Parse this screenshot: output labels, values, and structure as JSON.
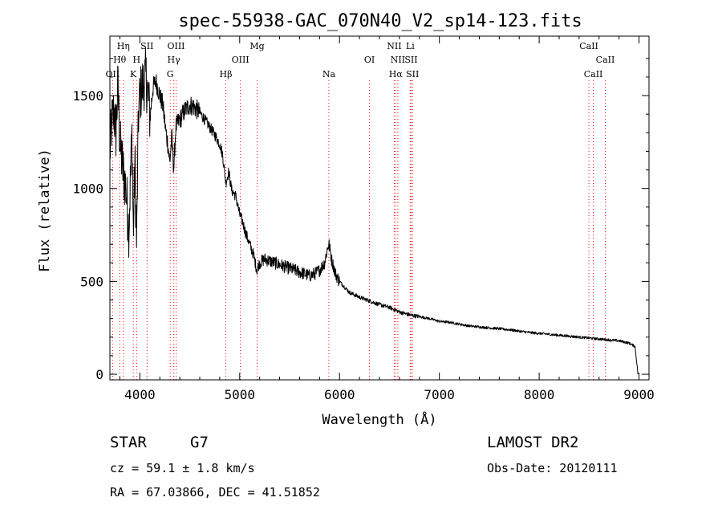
{
  "chart_data": {
    "type": "line",
    "title": "spec-55938-GAC_070N40_V2_sp14-123.fits",
    "xlabel": "Wavelength (Å)",
    "ylabel": "Flux (relative)",
    "xlim": [
      3700,
      9100
    ],
    "ylim": [
      -30,
      1820
    ],
    "xticks": [
      4000,
      5000,
      6000,
      7000,
      8000,
      9000
    ],
    "yticks": [
      0,
      500,
      1000,
      1500
    ],
    "grid": false,
    "line_color": "#000000",
    "marker_color": "#ff0000",
    "spectrum_anchors": [
      [
        3700,
        1200
      ],
      [
        3720,
        1350
      ],
      [
        3740,
        1420
      ],
      [
        3760,
        1300
      ],
      [
        3780,
        1550
      ],
      [
        3800,
        1250
      ],
      [
        3830,
        1100
      ],
      [
        3860,
        1000
      ],
      [
        3890,
        780
      ],
      [
        3920,
        1300
      ],
      [
        3935,
        760
      ],
      [
        3950,
        1150
      ],
      [
        3968,
        690
      ],
      [
        3985,
        1380
      ],
      [
        4000,
        1500
      ],
      [
        4030,
        1560
      ],
      [
        4060,
        1600
      ],
      [
        4080,
        1520
      ],
      [
        4102,
        1380
      ],
      [
        4130,
        1540
      ],
      [
        4160,
        1580
      ],
      [
        4200,
        1500
      ],
      [
        4230,
        1450
      ],
      [
        4260,
        1310
      ],
      [
        4280,
        1240
      ],
      [
        4300,
        1140
      ],
      [
        4320,
        1280
      ],
      [
        4340,
        1100
      ],
      [
        4360,
        1330
      ],
      [
        4400,
        1370
      ],
      [
        4450,
        1420
      ],
      [
        4500,
        1450
      ],
      [
        4540,
        1440
      ],
      [
        4600,
        1410
      ],
      [
        4650,
        1370
      ],
      [
        4700,
        1330
      ],
      [
        4750,
        1290
      ],
      [
        4800,
        1240
      ],
      [
        4830,
        1180
      ],
      [
        4861,
        1030
      ],
      [
        4890,
        1090
      ],
      [
        4920,
        990
      ],
      [
        4960,
        960
      ],
      [
        5000,
        860
      ],
      [
        5030,
        820
      ],
      [
        5060,
        760
      ],
      [
        5100,
        700
      ],
      [
        5140,
        640
      ],
      [
        5172,
        560
      ],
      [
        5200,
        600
      ],
      [
        5250,
        620
      ],
      [
        5300,
        610
      ],
      [
        5400,
        590
      ],
      [
        5500,
        570
      ],
      [
        5600,
        550
      ],
      [
        5700,
        530
      ],
      [
        5750,
        540
      ],
      [
        5800,
        560
      ],
      [
        5850,
        600
      ],
      [
        5880,
        680
      ],
      [
        5895,
        700
      ],
      [
        5920,
        620
      ],
      [
        5960,
        540
      ],
      [
        6000,
        500
      ],
      [
        6050,
        470
      ],
      [
        6100,
        440
      ],
      [
        6200,
        415
      ],
      [
        6300,
        395
      ],
      [
        6400,
        375
      ],
      [
        6500,
        360
      ],
      [
        6563,
        345
      ],
      [
        6600,
        335
      ],
      [
        6700,
        320
      ],
      [
        6800,
        310
      ],
      [
        6900,
        300
      ],
      [
        7000,
        285
      ],
      [
        7100,
        280
      ],
      [
        7200,
        270
      ],
      [
        7300,
        260
      ],
      [
        7400,
        255
      ],
      [
        7500,
        250
      ],
      [
        7600,
        245
      ],
      [
        7700,
        240
      ],
      [
        7800,
        232
      ],
      [
        7900,
        225
      ],
      [
        8000,
        220
      ],
      [
        8100,
        215
      ],
      [
        8200,
        210
      ],
      [
        8300,
        205
      ],
      [
        8400,
        200
      ],
      [
        8500,
        195
      ],
      [
        8600,
        190
      ],
      [
        8700,
        185
      ],
      [
        8800,
        180
      ],
      [
        8900,
        168
      ],
      [
        8960,
        150
      ],
      [
        8990,
        0
      ]
    ],
    "line_markers": [
      {
        "label": "OII",
        "wavelength": 3727,
        "row": 3
      },
      {
        "label": "Hθ",
        "wavelength": 3798,
        "row": 2
      },
      {
        "label": "Hη",
        "wavelength": 3835,
        "row": 1
      },
      {
        "label": "SII",
        "wavelength": 4072,
        "row": 1
      },
      {
        "label": "H",
        "wavelength": 3968,
        "row": 2
      },
      {
        "label": "K",
        "wavelength": 3934,
        "row": 3
      },
      {
        "label": "OIII",
        "wavelength": 4363,
        "row": 1
      },
      {
        "label": "Hγ",
        "wavelength": 4340,
        "row": 2
      },
      {
        "label": "G",
        "wavelength": 4304,
        "row": 3
      },
      {
        "label": "Hβ",
        "wavelength": 4861,
        "row": 3
      },
      {
        "label": "OIII",
        "wavelength": 5007,
        "row": 2
      },
      {
        "label": "Mg",
        "wavelength": 5175,
        "row": 1
      },
      {
        "label": "Na",
        "wavelength": 5893,
        "row": 3
      },
      {
        "label": "OI",
        "wavelength": 6300,
        "row": 2
      },
      {
        "label": "NII",
        "wavelength": 6548,
        "row": 1
      },
      {
        "label": "Li",
        "wavelength": 6708,
        "row": 1
      },
      {
        "label": "NII",
        "wavelength": 6584,
        "row": 2
      },
      {
        "label": "SII",
        "wavelength": 6717,
        "row": 2
      },
      {
        "label": "Hα",
        "wavelength": 6563,
        "row": 3
      },
      {
        "label": "SII",
        "wavelength": 6731,
        "row": 3
      },
      {
        "label": "CaII",
        "wavelength": 8498,
        "row": 1
      },
      {
        "label": "CaII",
        "wavelength": 8662,
        "row": 2
      },
      {
        "label": "CaII",
        "wavelength": 8542,
        "row": 3
      }
    ]
  },
  "info": {
    "object_class": "STAR",
    "subclass": "G7",
    "survey": "LAMOST DR2",
    "redshift": "cz = 59.1 ± 1.8 km/s",
    "obs_date": "Obs-Date: 20120111",
    "coords": "RA =  67.03866, DEC =  41.51852"
  }
}
